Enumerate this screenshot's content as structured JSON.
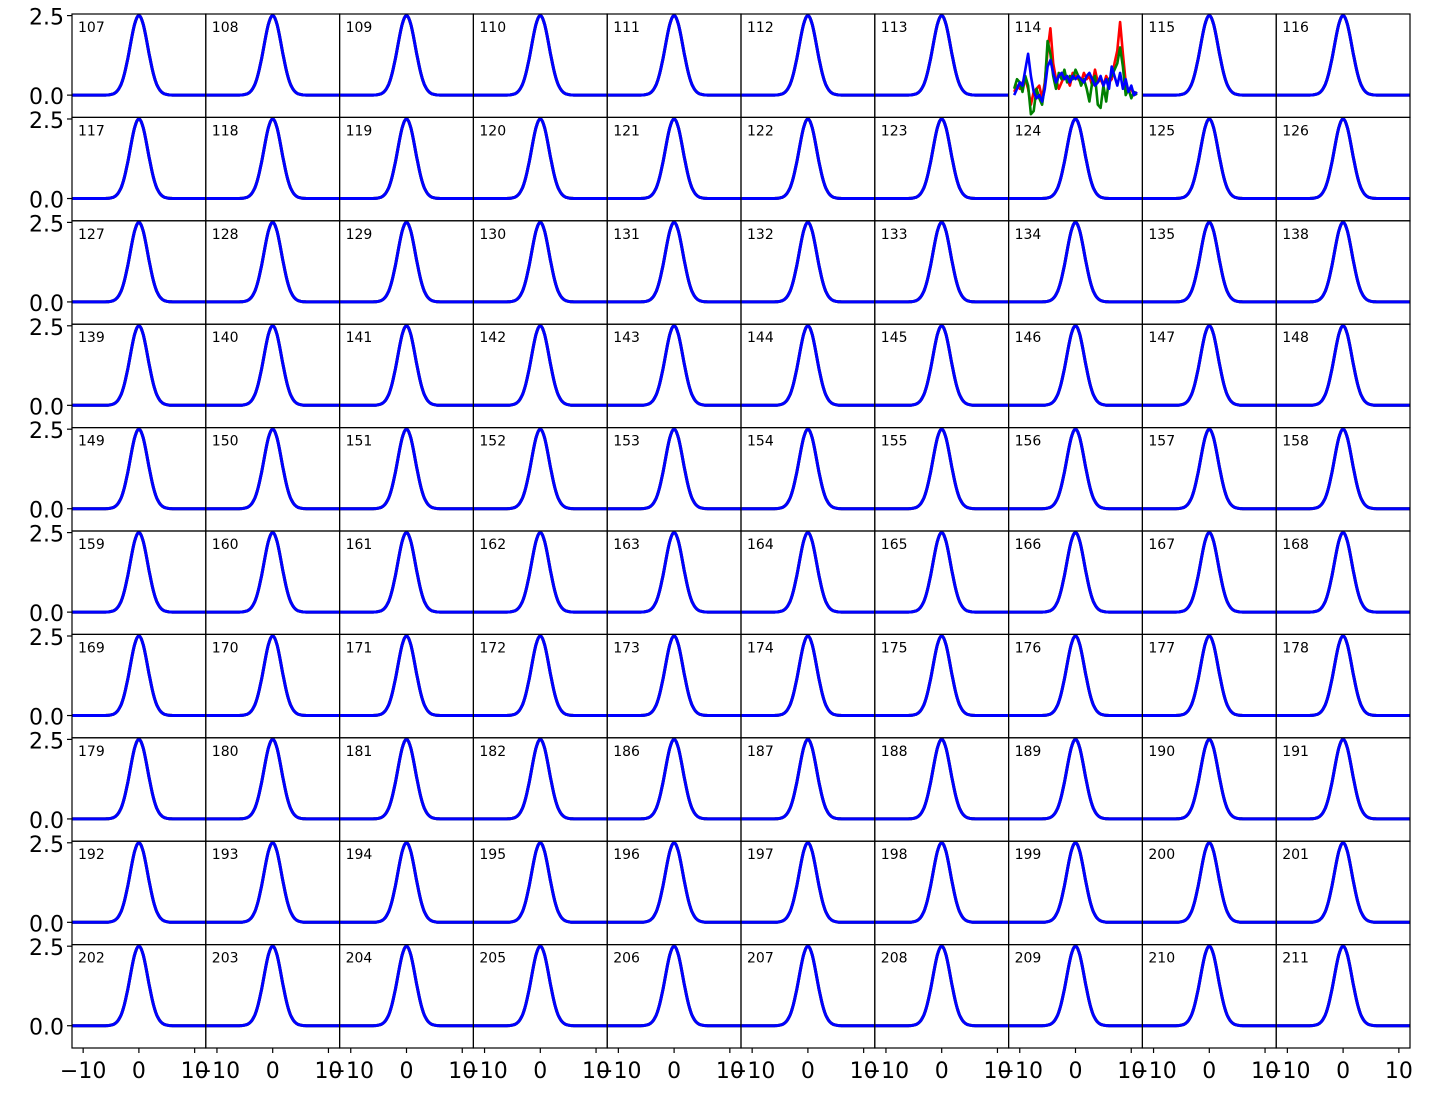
{
  "chart_data": {
    "type": "line",
    "layout": {
      "rows": 10,
      "cols": 10
    },
    "panel_labels": [
      "107",
      "108",
      "109",
      "110",
      "111",
      "112",
      "113",
      "114",
      "115",
      "116",
      "117",
      "118",
      "119",
      "120",
      "121",
      "122",
      "123",
      "124",
      "125",
      "126",
      "127",
      "128",
      "129",
      "130",
      "131",
      "132",
      "133",
      "134",
      "135",
      "138",
      "139",
      "140",
      "141",
      "142",
      "143",
      "144",
      "145",
      "146",
      "147",
      "148",
      "149",
      "150",
      "151",
      "152",
      "153",
      "154",
      "155",
      "156",
      "157",
      "158",
      "159",
      "160",
      "161",
      "162",
      "163",
      "164",
      "165",
      "166",
      "167",
      "168",
      "169",
      "170",
      "171",
      "172",
      "173",
      "174",
      "175",
      "176",
      "177",
      "178",
      "179",
      "180",
      "181",
      "182",
      "186",
      "187",
      "188",
      "189",
      "190",
      "191",
      "192",
      "193",
      "194",
      "195",
      "196",
      "197",
      "198",
      "199",
      "200",
      "201",
      "202",
      "203",
      "204",
      "205",
      "206",
      "207",
      "208",
      "209",
      "210",
      "211"
    ],
    "xlim": [
      -12,
      12
    ],
    "ylim": [
      -0.7,
      2.55
    ],
    "x_ticks": [
      -10,
      0,
      10
    ],
    "x_tick_labels": [
      "−10",
      "0",
      "10"
    ],
    "y_ticks": [
      2.5,
      0.0
    ],
    "y_tick_labels": [
      "2.5",
      "0.0"
    ],
    "grid": false,
    "series_colors": [
      "#ff0000",
      "#008000",
      "#0000ff"
    ],
    "gaussian_template": {
      "amplitude": 2.5,
      "center": 0,
      "sigma": 1.6
    },
    "anomalous_panel": {
      "label": "114",
      "series": [
        {
          "color": "#ff0000",
          "x": [
            -11,
            -10.5,
            -10,
            -9.5,
            -9,
            -8.5,
            -8,
            -7.5,
            -7,
            -6.5,
            -6,
            -5.5,
            -5,
            -4.5,
            -4,
            -3.5,
            -3,
            -2.5,
            -2,
            -1.5,
            -1,
            -0.5,
            0,
            0.5,
            1,
            1.5,
            2,
            2.5,
            3,
            3.5,
            4,
            4.5,
            5,
            5.5,
            6,
            6.5,
            7,
            7.5,
            8,
            8.5,
            9,
            9.5,
            10,
            10.5,
            11
          ],
          "y": [
            0.1,
            0.3,
            0.2,
            0.4,
            0.5,
            0.2,
            -0.3,
            0.1,
            0.2,
            0.3,
            -0.1,
            0.4,
            1.4,
            2.1,
            1.0,
            0.5,
            0.2,
            0.4,
            0.6,
            0.5,
            0.3,
            0.7,
            0.6,
            0.5,
            0.4,
            0.7,
            0.5,
            0.6,
            0.3,
            0.8,
            0.4,
            0.5,
            0.3,
            0.6,
            0.4,
            0.5,
            1.0,
            1.4,
            2.3,
            1.3,
            0.4,
            0.1,
            0.2,
            0.0,
            0.1
          ]
        },
        {
          "color": "#008000",
          "x": [
            -11,
            -10.5,
            -10,
            -9.5,
            -9,
            -8.5,
            -8,
            -7.5,
            -7,
            -6.5,
            -6,
            -5.5,
            -5,
            -4.5,
            -4,
            -3.5,
            -3,
            -2.5,
            -2,
            -1.5,
            -1,
            -0.5,
            0,
            0.5,
            1,
            1.5,
            2,
            2.5,
            3,
            3.5,
            4,
            4.5,
            5,
            5.5,
            6,
            6.5,
            7,
            7.5,
            8,
            8.5,
            9,
            9.5,
            10,
            10.5,
            11
          ],
          "y": [
            0.2,
            0.5,
            0.4,
            0.1,
            0.6,
            0.3,
            -0.6,
            -0.5,
            0.2,
            -0.1,
            -0.3,
            0.3,
            1.7,
            1.3,
            0.6,
            0.2,
            0.7,
            0.5,
            0.8,
            0.4,
            0.6,
            0.5,
            0.8,
            0.6,
            0.3,
            0.5,
            0.2,
            -0.2,
            0.4,
            0.6,
            -0.3,
            -0.4,
            0.3,
            -0.2,
            0.5,
            0.6,
            0.8,
            1.0,
            1.5,
            0.9,
            0.0,
            0.2,
            -0.1,
            0.1,
            0.0
          ]
        },
        {
          "color": "#0000ff",
          "x": [
            -11,
            -10.5,
            -10,
            -9.5,
            -9,
            -8.5,
            -8,
            -7.5,
            -7,
            -6.5,
            -6,
            -5.5,
            -5,
            -4.5,
            -4,
            -3.5,
            -3,
            -2.5,
            -2,
            -1.5,
            -1,
            -0.5,
            0,
            0.5,
            1,
            1.5,
            2,
            2.5,
            3,
            3.5,
            4,
            4.5,
            5,
            5.5,
            6,
            6.5,
            7,
            7.5,
            8,
            8.5,
            9,
            9.5,
            10,
            10.5,
            11
          ],
          "y": [
            0.0,
            0.2,
            0.4,
            0.3,
            0.8,
            1.3,
            0.6,
            0.1,
            -0.1,
            0.0,
            -0.2,
            0.2,
            0.9,
            1.1,
            0.7,
            0.4,
            0.6,
            0.7,
            0.5,
            0.6,
            0.4,
            0.6,
            0.5,
            0.6,
            0.5,
            0.4,
            0.6,
            0.7,
            0.5,
            0.3,
            0.4,
            0.6,
            0.3,
            0.5,
            0.2,
            0.9,
            0.6,
            0.3,
            0.7,
            0.2,
            0.5,
            0.1,
            0.3,
            0.0,
            0.1
          ]
        }
      ]
    }
  }
}
